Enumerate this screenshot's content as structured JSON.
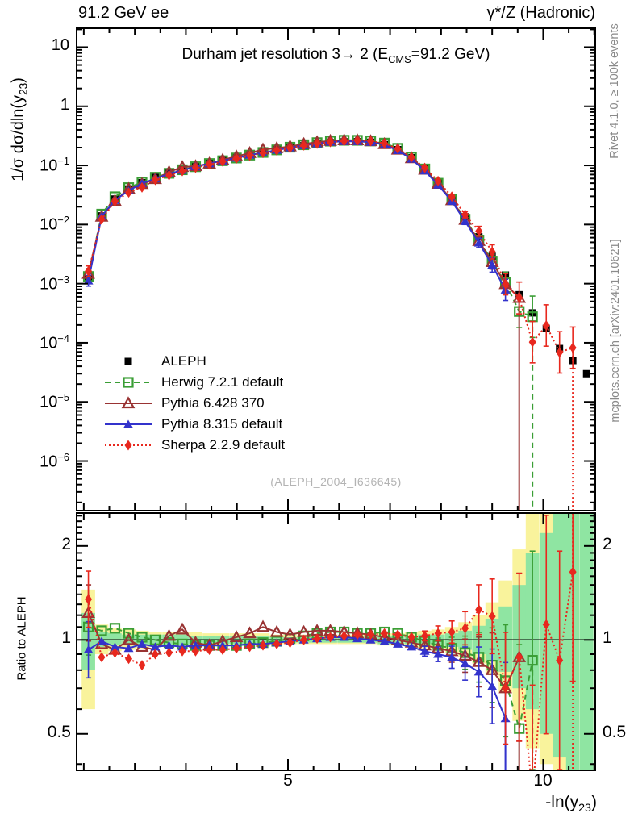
{
  "header": {
    "left": "91.2 GeV ee",
    "right": "γ*/Z (Hadronic)"
  },
  "plot_title": {
    "pre": "Durham jet resolution 3→ 2 (E",
    "sub": "CMS",
    "post": "=91.2 GeV)"
  },
  "watermark": "(ALEPH_2004_I636645)",
  "side_notes": {
    "top": "Rivet 4.1.0, ≥ 100k events",
    "bottom": "mcplots.cern.ch [arXiv:2401.10621]"
  },
  "axes": {
    "x_title": {
      "pre": "-ln(y",
      "sub": "23",
      "post": ")"
    },
    "y_main_title": {
      "pre": "1/σ  dσ/dln(y",
      "sub": "23",
      "post": ")"
    },
    "ratio_title": "Ratio to ALEPH",
    "x_tick_labels": [
      {
        "value": 5,
        "label": "5"
      },
      {
        "value": 10,
        "label": "10"
      }
    ],
    "y_main_tick_labels": [
      {
        "pow": 1,
        "base": "10",
        "exp": ""
      },
      {
        "pow": 0,
        "base": "1",
        "exp": ""
      },
      {
        "pow": -1,
        "base": "10",
        "exp": "−1"
      },
      {
        "pow": -2,
        "base": "10",
        "exp": "−2"
      },
      {
        "pow": -3,
        "base": "10",
        "exp": "−3"
      },
      {
        "pow": -4,
        "base": "10",
        "exp": "−4"
      },
      {
        "pow": -5,
        "base": "10",
        "exp": "−5"
      },
      {
        "pow": -6,
        "base": "10",
        "exp": "−6"
      }
    ],
    "ratio_tick_labels": [
      {
        "value": 2,
        "label": "2"
      },
      {
        "value": 1,
        "label": "1"
      },
      {
        "value": 0.5,
        "label": "0.5"
      }
    ]
  },
  "legend": [
    {
      "label": "ALEPH",
      "marker": "square-filled",
      "line": "none",
      "color": "#000000"
    },
    {
      "label": "Herwig 7.2.1 default",
      "marker": "square-open",
      "line": "dashed",
      "color": "#3a9e35"
    },
    {
      "label": "Pythia 6.428 370",
      "marker": "triangle-open",
      "line": "solid",
      "color": "#993333"
    },
    {
      "label": "Pythia 8.315 default",
      "marker": "triangle-filled",
      "line": "solid",
      "color": "#3333cc"
    },
    {
      "label": "Sherpa 2.2.9 default",
      "marker": "diamond-filled",
      "line": "dotted",
      "color": "#e8281e"
    }
  ],
  "chart_data": {
    "type": "line",
    "title": "Durham jet resolution 3→ 2 (E_CMS=91.2 GeV)",
    "xlabel": "-ln(y_23)",
    "ylabel": "1/σ dσ/dln(y_23)",
    "ratio_ylabel": "Ratio to ALEPH",
    "x_range": [
      0.86,
      11.02
    ],
    "y_main_range": [
      1.45e-07,
      20.9
    ],
    "y_main_scale": "log",
    "y_ratio_range": [
      0.382,
      2.55
    ],
    "y_ratio_scale": "log",
    "x": [
      1.09,
      1.35,
      1.61,
      1.88,
      2.14,
      2.4,
      2.67,
      2.93,
      3.19,
      3.46,
      3.72,
      3.99,
      4.25,
      4.51,
      4.78,
      5.04,
      5.31,
      5.57,
      5.83,
      6.1,
      6.36,
      6.62,
      6.89,
      7.15,
      7.42,
      7.68,
      7.94,
      8.21,
      8.47,
      8.74,
      9.0,
      9.26,
      9.53,
      9.79,
      10.06,
      10.32,
      10.58,
      10.85
    ],
    "reference": {
      "name": "ALEPH",
      "values": [
        0.0012,
        0.014,
        0.027,
        0.04,
        0.051,
        0.063,
        0.075,
        0.087,
        0.099,
        0.112,
        0.125,
        0.139,
        0.154,
        0.169,
        0.185,
        0.201,
        0.217,
        0.231,
        0.243,
        0.251,
        0.253,
        0.247,
        0.225,
        0.185,
        0.135,
        0.088,
        0.052,
        0.028,
        0.0135,
        0.0062,
        0.0029,
        0.0014,
        0.00065,
        0.00032,
        0.000175,
        8e-05,
        5e-05,
        3e-05
      ]
    },
    "series": [
      {
        "name": "Herwig 7.2.1 default",
        "color": "#3a9e35",
        "line": "dashed",
        "marker": "square-open",
        "drop_main": true,
        "drop_ratio": "line",
        "ratio_to_reference": [
          1.1,
          1.07,
          1.09,
          1.05,
          1.02,
          1.0,
          0.98,
          0.97,
          0.96,
          0.96,
          0.96,
          0.96,
          0.97,
          0.98,
          0.99,
          1.01,
          1.03,
          1.05,
          1.06,
          1.06,
          1.05,
          1.05,
          1.06,
          1.05,
          1.02,
          0.99,
          0.96,
          0.94,
          0.91,
          0.88,
          0.83,
          0.74,
          0.52,
          0.86,
          null,
          null,
          null,
          null
        ]
      },
      {
        "name": "Pythia 6.428 370",
        "color": "#993333",
        "line": "solid",
        "marker": "triangle-open",
        "drop_main": true,
        "drop_ratio": "line",
        "ratio_to_reference": [
          1.22,
          0.97,
          0.93,
          1.0,
          0.95,
          0.93,
          1.03,
          1.08,
          0.98,
          0.96,
          0.99,
          1.02,
          1.05,
          1.1,
          1.06,
          1.04,
          1.06,
          1.07,
          1.07,
          1.06,
          1.05,
          1.04,
          1.02,
          1.0,
          0.98,
          0.96,
          0.94,
          0.92,
          0.89,
          0.85,
          0.8,
          0.7,
          0.88,
          null,
          null,
          null,
          null,
          null
        ]
      },
      {
        "name": "Pythia 8.315 default",
        "color": "#3333cc",
        "line": "solid",
        "marker": "triangle-filled",
        "drop_main": false,
        "drop_ratio": "line",
        "ratio_to_reference": [
          0.93,
          0.99,
          0.95,
          0.94,
          0.97,
          0.95,
          0.96,
          0.95,
          0.96,
          0.96,
          0.96,
          0.96,
          0.97,
          0.97,
          0.98,
          0.99,
          1.0,
          1.01,
          1.02,
          1.02,
          1.01,
          1.0,
          0.99,
          0.97,
          0.95,
          0.92,
          0.9,
          0.88,
          0.84,
          0.79,
          0.71,
          0.56,
          null,
          null,
          null,
          null,
          null,
          null
        ]
      },
      {
        "name": "Sherpa 2.2.9 default",
        "color": "#e8281e",
        "line": "dotted",
        "marker": "diamond-filled",
        "drop_main": true,
        "drop_ratio": "full",
        "ratio_to_reference": [
          1.35,
          0.88,
          0.91,
          0.87,
          0.83,
          0.9,
          0.91,
          0.92,
          0.92,
          0.93,
          0.93,
          0.94,
          0.95,
          0.96,
          0.97,
          0.98,
          1.0,
          1.01,
          1.02,
          1.03,
          1.04,
          1.04,
          1.05,
          1.04,
          1.02,
          1.03,
          1.05,
          1.06,
          1.09,
          1.25,
          1.19,
          0.7,
          0.88,
          0.32,
          1.12,
          0.86,
          1.65,
          null
        ]
      }
    ],
    "uncertainty_bands": {
      "outer_color": "#f9f39c",
      "inner_color": "#8fe5a2",
      "outer_lo": [
        0.6,
        0.9,
        0.92,
        0.93,
        0.94,
        0.95,
        0.95,
        0.95,
        0.95,
        0.96,
        0.96,
        0.96,
        0.96,
        0.96,
        0.97,
        0.97,
        0.97,
        0.97,
        0.97,
        0.97,
        0.97,
        0.97,
        0.96,
        0.96,
        0.95,
        0.94,
        0.93,
        0.91,
        0.88,
        0.84,
        0.78,
        0.68,
        0.55,
        0.45,
        0.4,
        0.38,
        0.38,
        0.38
      ],
      "outer_hi": [
        1.45,
        1.12,
        1.09,
        1.08,
        1.07,
        1.06,
        1.06,
        1.06,
        1.06,
        1.05,
        1.05,
        1.05,
        1.05,
        1.05,
        1.04,
        1.04,
        1.04,
        1.04,
        1.04,
        1.04,
        1.04,
        1.04,
        1.05,
        1.05,
        1.06,
        1.07,
        1.08,
        1.1,
        1.14,
        1.2,
        1.32,
        1.55,
        1.95,
        2.55,
        2.55,
        2.55,
        2.55,
        2.55
      ],
      "inner_lo": [
        0.8,
        0.95,
        0.96,
        0.96,
        0.96,
        0.96,
        0.96,
        0.96,
        0.97,
        0.97,
        0.97,
        0.97,
        0.97,
        0.97,
        0.98,
        0.98,
        0.98,
        0.98,
        0.98,
        0.98,
        0.98,
        0.98,
        0.97,
        0.97,
        0.97,
        0.97,
        0.96,
        0.95,
        0.93,
        0.9,
        0.86,
        0.79,
        0.7,
        0.6,
        0.5,
        0.42,
        0.38,
        0.38
      ],
      "inner_hi": [
        1.22,
        1.06,
        1.05,
        1.04,
        1.04,
        1.04,
        1.04,
        1.04,
        1.03,
        1.03,
        1.03,
        1.03,
        1.03,
        1.03,
        1.02,
        1.02,
        1.02,
        1.02,
        1.02,
        1.02,
        1.02,
        1.03,
        1.03,
        1.03,
        1.03,
        1.04,
        1.04,
        1.05,
        1.07,
        1.11,
        1.17,
        1.28,
        1.5,
        1.9,
        2.2,
        2.55,
        2.55,
        2.55
      ]
    }
  }
}
